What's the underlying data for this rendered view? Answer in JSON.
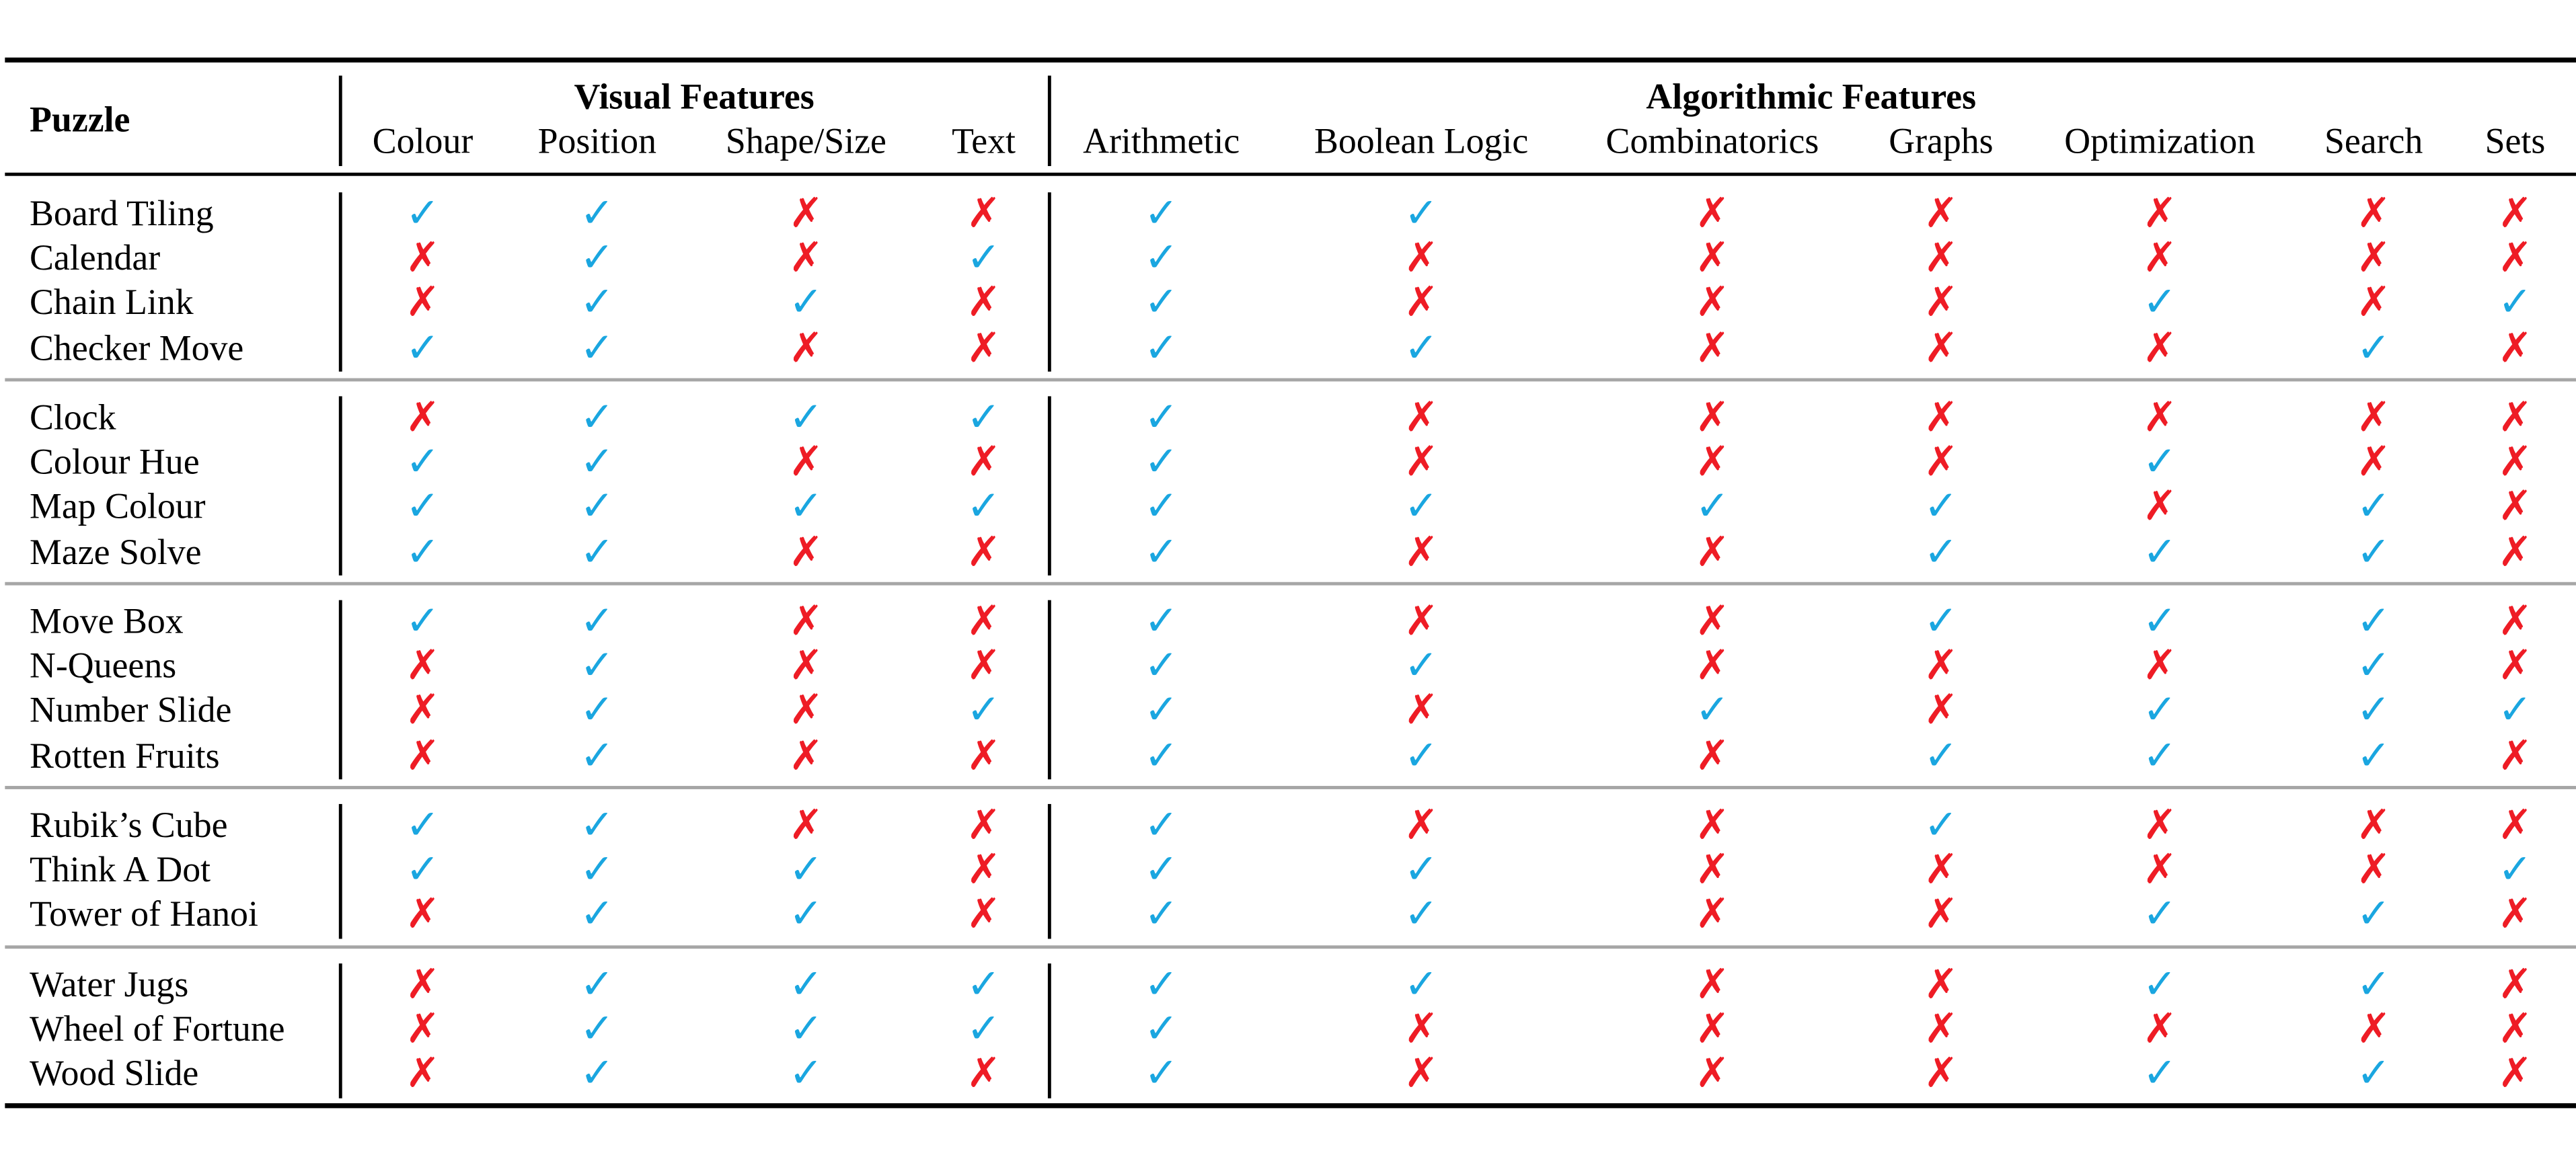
{
  "table": {
    "corner_header": "Puzzle",
    "groups": [
      {
        "label": "Visual Features"
      },
      {
        "label": "Algorithmic Features"
      }
    ],
    "columns": [
      "Colour",
      "Position",
      "Shape/Size",
      "Text",
      "Arithmetic",
      "Boolean Logic",
      "Combinatorics",
      "Graphs",
      "Optimization",
      "Search",
      "Sets"
    ],
    "symbols": {
      "yes": "✓",
      "no": "✗"
    },
    "colors": {
      "yes": "#1aa6e0",
      "no": "#ee1c25",
      "separator": "#a6a6a6"
    },
    "sections": [
      [
        {
          "name": "Board Tiling",
          "values": [
            1,
            1,
            0,
            0,
            1,
            1,
            0,
            0,
            0,
            0,
            0
          ]
        },
        {
          "name": "Calendar",
          "values": [
            0,
            1,
            0,
            1,
            1,
            0,
            0,
            0,
            0,
            0,
            0
          ]
        },
        {
          "name": "Chain Link",
          "values": [
            0,
            1,
            1,
            0,
            1,
            0,
            0,
            0,
            1,
            0,
            1
          ]
        },
        {
          "name": "Checker Move",
          "values": [
            1,
            1,
            0,
            0,
            1,
            1,
            0,
            0,
            0,
            1,
            0
          ]
        }
      ],
      [
        {
          "name": "Clock",
          "values": [
            0,
            1,
            1,
            1,
            1,
            0,
            0,
            0,
            0,
            0,
            0
          ]
        },
        {
          "name": "Colour Hue",
          "values": [
            1,
            1,
            0,
            0,
            1,
            0,
            0,
            0,
            1,
            0,
            0
          ]
        },
        {
          "name": "Map Colour",
          "values": [
            1,
            1,
            1,
            1,
            1,
            1,
            1,
            1,
            0,
            1,
            0
          ]
        },
        {
          "name": "Maze Solve",
          "values": [
            1,
            1,
            0,
            0,
            1,
            0,
            0,
            1,
            1,
            1,
            0
          ]
        }
      ],
      [
        {
          "name": "Move Box",
          "values": [
            1,
            1,
            0,
            0,
            1,
            0,
            0,
            1,
            1,
            1,
            0
          ]
        },
        {
          "name": "N-Queens",
          "values": [
            0,
            1,
            0,
            0,
            1,
            1,
            0,
            0,
            0,
            1,
            0
          ]
        },
        {
          "name": "Number Slide",
          "values": [
            0,
            1,
            0,
            1,
            1,
            0,
            1,
            0,
            1,
            1,
            1
          ]
        },
        {
          "name": "Rotten Fruits",
          "values": [
            0,
            1,
            0,
            0,
            1,
            1,
            0,
            1,
            1,
            1,
            0
          ]
        }
      ],
      [
        {
          "name": "Rubik’s Cube",
          "values": [
            1,
            1,
            0,
            0,
            1,
            0,
            0,
            1,
            0,
            0,
            0
          ]
        },
        {
          "name": "Think A Dot",
          "values": [
            1,
            1,
            1,
            0,
            1,
            1,
            0,
            0,
            0,
            0,
            1
          ]
        },
        {
          "name": "Tower of Hanoi",
          "values": [
            0,
            1,
            1,
            0,
            1,
            1,
            0,
            0,
            1,
            1,
            0
          ]
        }
      ],
      [
        {
          "name": "Water Jugs",
          "values": [
            0,
            1,
            1,
            1,
            1,
            1,
            0,
            0,
            1,
            1,
            0
          ]
        },
        {
          "name": "Wheel of Fortune",
          "values": [
            0,
            1,
            1,
            1,
            1,
            0,
            0,
            0,
            0,
            0,
            0
          ]
        },
        {
          "name": "Wood Slide",
          "values": [
            0,
            1,
            1,
            0,
            1,
            0,
            0,
            0,
            1,
            1,
            0
          ]
        }
      ]
    ]
  }
}
